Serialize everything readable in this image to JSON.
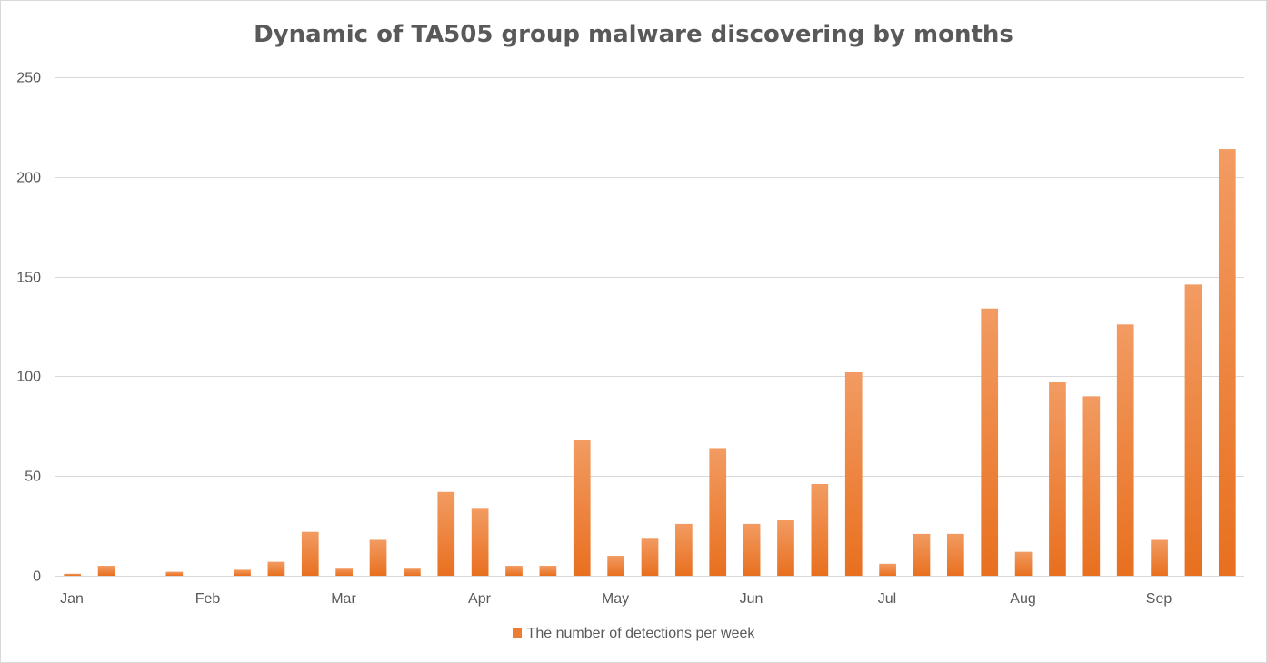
{
  "chart_data": {
    "type": "bar",
    "title": "Dynamic of TA505 group malware discovering by months",
    "xlabel": "",
    "ylabel": "",
    "ylim": [
      0,
      250
    ],
    "yticks": [
      0,
      50,
      100,
      150,
      200,
      250
    ],
    "month_labels": [
      "Jan",
      "Feb",
      "Mar",
      "Apr",
      "May",
      "Jun",
      "Jul",
      "Aug",
      "Sep"
    ],
    "grid": true,
    "legend_position": "bottom",
    "series": [
      {
        "name": "The number of detections per week",
        "color": "#ed7d31",
        "values": [
          1,
          5,
          0,
          2,
          0,
          3,
          7,
          22,
          4,
          18,
          4,
          42,
          34,
          5,
          5,
          68,
          10,
          19,
          26,
          64,
          26,
          28,
          46,
          102,
          6,
          21,
          21,
          134,
          12,
          97,
          90,
          126,
          18,
          146,
          214
        ]
      }
    ]
  }
}
